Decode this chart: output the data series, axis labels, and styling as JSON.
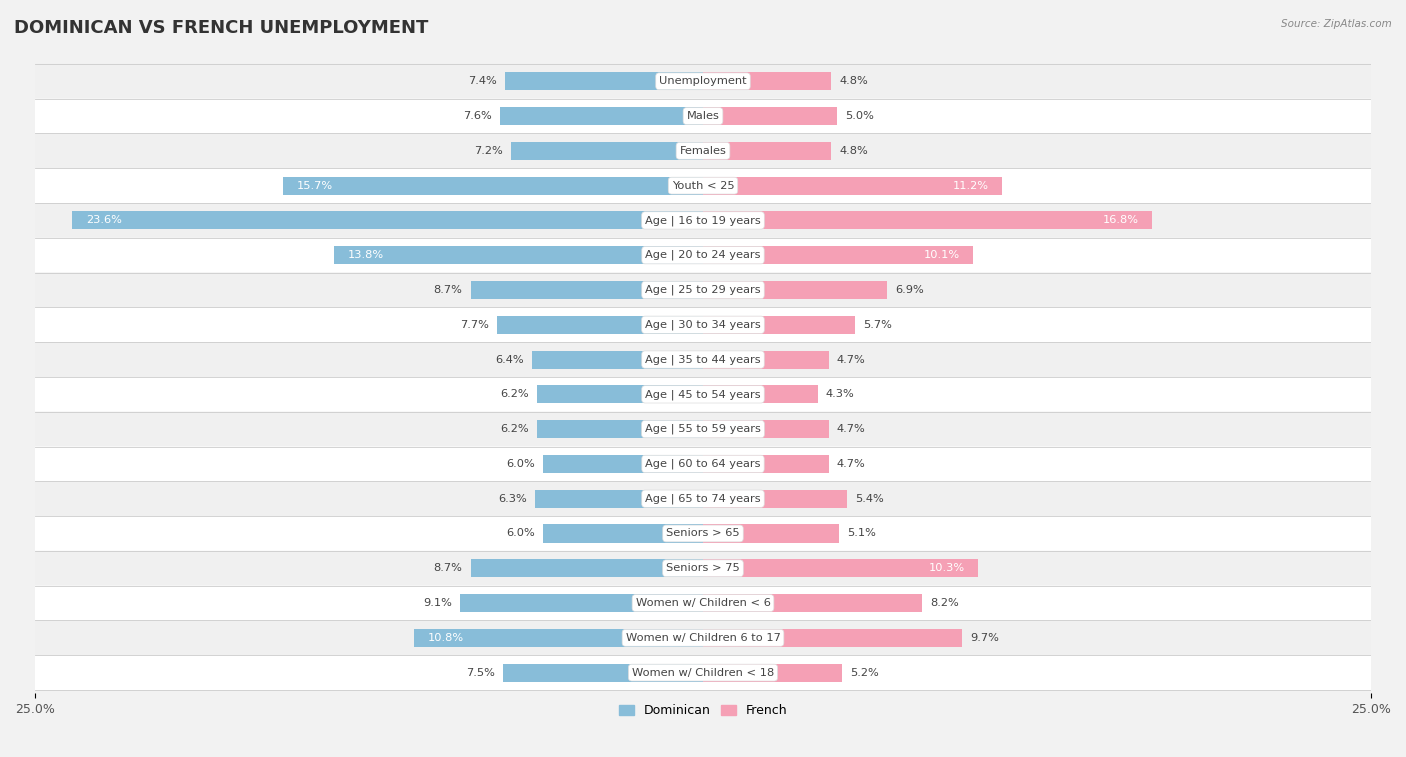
{
  "title": "DOMINICAN VS FRENCH UNEMPLOYMENT",
  "source": "Source: ZipAtlas.com",
  "categories": [
    "Unemployment",
    "Males",
    "Females",
    "Youth < 25",
    "Age | 16 to 19 years",
    "Age | 20 to 24 years",
    "Age | 25 to 29 years",
    "Age | 30 to 34 years",
    "Age | 35 to 44 years",
    "Age | 45 to 54 years",
    "Age | 55 to 59 years",
    "Age | 60 to 64 years",
    "Age | 65 to 74 years",
    "Seniors > 65",
    "Seniors > 75",
    "Women w/ Children < 6",
    "Women w/ Children 6 to 17",
    "Women w/ Children < 18"
  ],
  "dominican": [
    7.4,
    7.6,
    7.2,
    15.7,
    23.6,
    13.8,
    8.7,
    7.7,
    6.4,
    6.2,
    6.2,
    6.0,
    6.3,
    6.0,
    8.7,
    9.1,
    10.8,
    7.5
  ],
  "french": [
    4.8,
    5.0,
    4.8,
    11.2,
    16.8,
    10.1,
    6.9,
    5.7,
    4.7,
    4.3,
    4.7,
    4.7,
    5.4,
    5.1,
    10.3,
    8.2,
    9.7,
    5.2
  ],
  "dominican_color": "#88bdd9",
  "french_color": "#f5a0b5",
  "row_colors": [
    "#f0f0f0",
    "#ffffff"
  ],
  "title_fontsize": 13,
  "label_fontsize": 8.2,
  "value_fontsize": 8.2,
  "bar_height": 0.52,
  "max_val": 25.0
}
